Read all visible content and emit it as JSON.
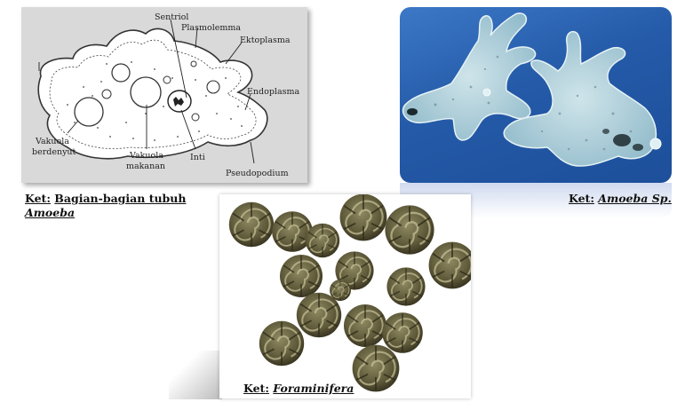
{
  "diagram": {
    "labels": {
      "sentriol": "Sentriol",
      "plasmolemma": "Plasmolemma",
      "ektoplasma": "Ektoplasma",
      "endoplasma": "Endoplasma",
      "vakuola_berdenyut_1": "Vakuola",
      "vakuola_berdenyut_2": "berdenyut",
      "vakuola_makanan_1": "Vakuola",
      "vakuola_makanan_2": "makanan",
      "inti": "Inti",
      "pseudopodium": "Pseudopodium"
    }
  },
  "captions": {
    "diagram": {
      "prefix": "Ket:",
      "text": "Bagian-bagian tubuh",
      "italic": "Amoeba"
    },
    "photo": {
      "prefix": "Ket:",
      "italic": "Amoeba Sp."
    },
    "fora": {
      "prefix": "Ket:",
      "italic": "Foraminifera"
    }
  },
  "colors": {
    "diagram_bg": "#d9d9d9",
    "photo_bg": "#245aa8",
    "amoeba_cell": "#b9d6e0",
    "foram": "#5f5a3a"
  }
}
